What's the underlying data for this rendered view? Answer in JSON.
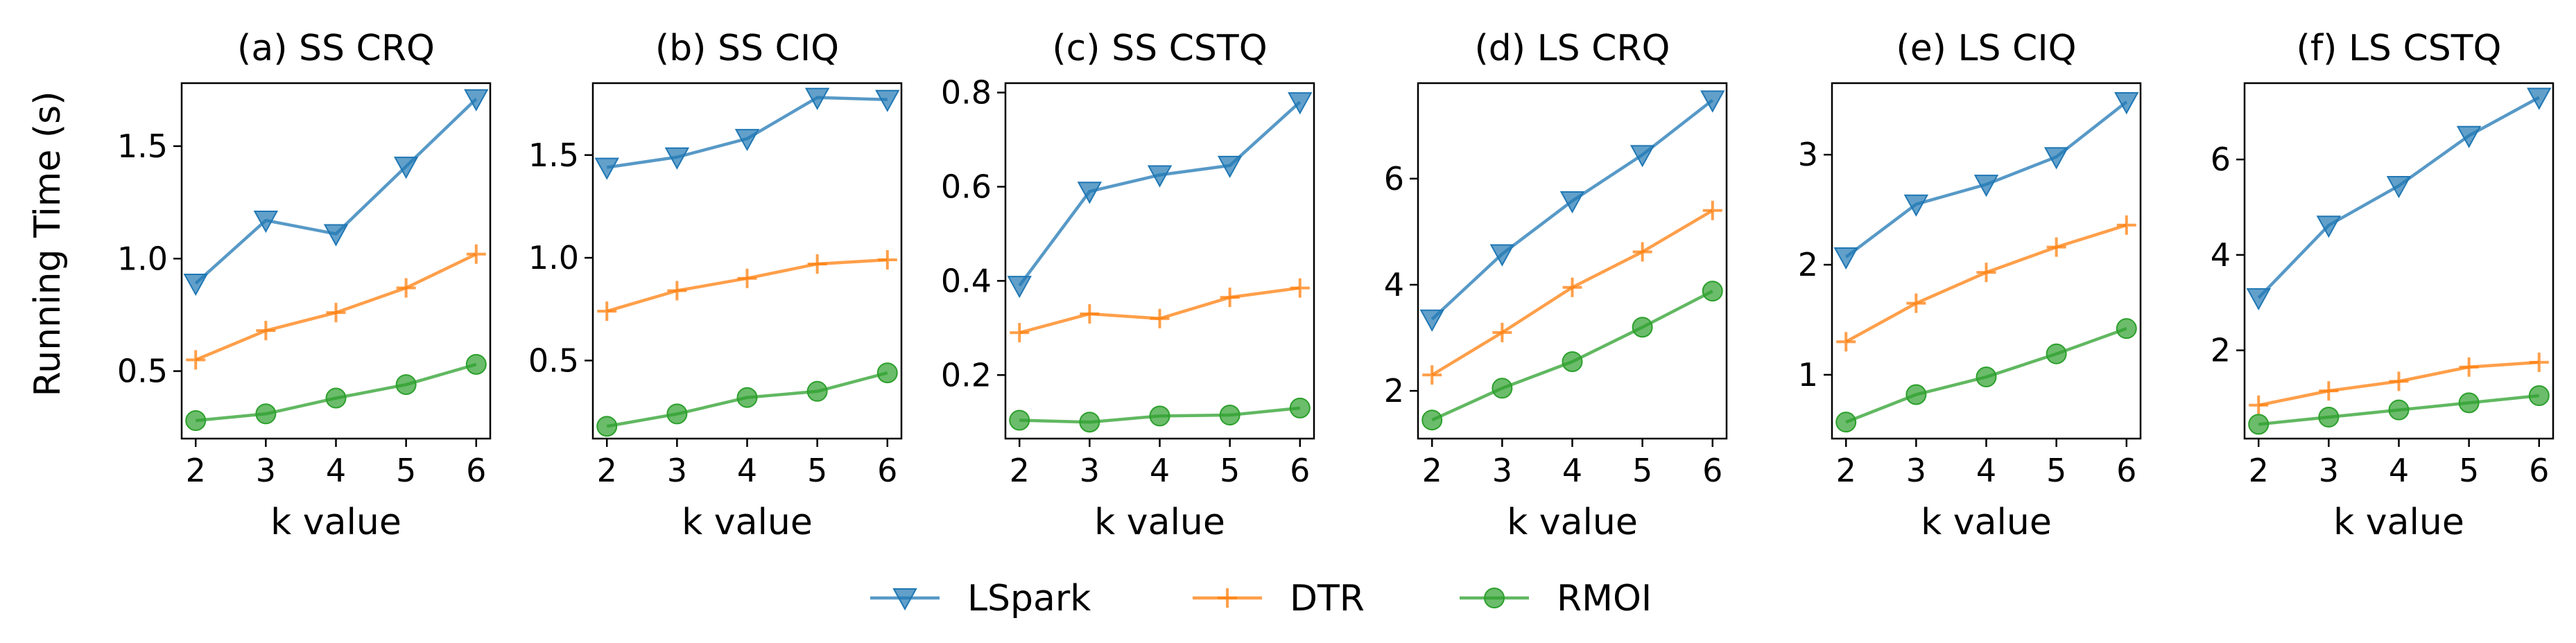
{
  "figure": {
    "ylabel": "Running Time (s)",
    "legend": {
      "placement": "bottom-center",
      "entries": [
        {
          "name": "LSpark",
          "color": "#1f77b4",
          "marker": "triangle-down"
        },
        {
          "name": "DTR",
          "color": "#ff7f0e",
          "marker": "plus"
        },
        {
          "name": "RMOI",
          "color": "#2ca02c",
          "marker": "circle"
        }
      ]
    }
  },
  "chart_data": [
    {
      "type": "line",
      "title": "(a) SS CRQ",
      "xlabel": "k value",
      "ylabel": "Running Time (s)",
      "x": [
        2,
        3,
        4,
        5,
        6
      ],
      "xticks": [
        "2",
        "3",
        "4",
        "5",
        "6"
      ],
      "ylim": [
        0.2,
        1.78
      ],
      "yticks": [
        0.5,
        1.0,
        1.5
      ],
      "ytick_labels": [
        "0.5",
        "1.0",
        "1.5"
      ],
      "series": [
        {
          "name": "LSpark",
          "values": [
            0.89,
            1.17,
            1.11,
            1.41,
            1.71
          ]
        },
        {
          "name": "DTR",
          "values": [
            0.55,
            0.68,
            0.76,
            0.87,
            1.02
          ]
        },
        {
          "name": "RMOI",
          "values": [
            0.28,
            0.31,
            0.38,
            0.44,
            0.53
          ]
        }
      ]
    },
    {
      "type": "line",
      "title": "(b) SS CIQ",
      "xlabel": "k value",
      "x": [
        2,
        3,
        4,
        5,
        6
      ],
      "xticks": [
        "2",
        "3",
        "4",
        "5",
        "6"
      ],
      "ylim": [
        0.12,
        1.85
      ],
      "yticks": [
        0.5,
        1.0,
        1.5
      ],
      "ytick_labels": [
        "0.5",
        "1.0",
        "1.5"
      ],
      "series": [
        {
          "name": "LSpark",
          "values": [
            1.44,
            1.49,
            1.58,
            1.78,
            1.77
          ]
        },
        {
          "name": "DTR",
          "values": [
            0.74,
            0.84,
            0.9,
            0.97,
            0.99
          ]
        },
        {
          "name": "RMOI",
          "values": [
            0.18,
            0.24,
            0.32,
            0.35,
            0.44
          ]
        }
      ]
    },
    {
      "type": "line",
      "title": "(c) SS CSTQ",
      "xlabel": "k value",
      "x": [
        2,
        3,
        4,
        5,
        6
      ],
      "xticks": [
        "2",
        "3",
        "4",
        "5",
        "6"
      ],
      "ylim": [
        0.065,
        0.82
      ],
      "yticks": [
        0.2,
        0.4,
        0.6,
        0.8
      ],
      "ytick_labels": [
        "0.2",
        "0.4",
        "0.6",
        "0.8"
      ],
      "series": [
        {
          "name": "LSpark",
          "values": [
            0.39,
            0.59,
            0.625,
            0.645,
            0.78
          ]
        },
        {
          "name": "DTR",
          "values": [
            0.29,
            0.33,
            0.32,
            0.365,
            0.385
          ]
        },
        {
          "name": "RMOI",
          "values": [
            0.104,
            0.1,
            0.113,
            0.115,
            0.13
          ]
        }
      ]
    },
    {
      "type": "line",
      "title": "(d) LS CRQ",
      "xlabel": "k value",
      "x": [
        2,
        3,
        4,
        5,
        6
      ],
      "xticks": [
        "2",
        "3",
        "4",
        "5",
        "6"
      ],
      "ylim": [
        1.1,
        7.8
      ],
      "yticks": [
        2,
        4,
        6
      ],
      "ytick_labels": [
        "2",
        "4",
        "6"
      ],
      "series": [
        {
          "name": "LSpark",
          "values": [
            3.35,
            4.58,
            5.58,
            6.45,
            7.48
          ]
        },
        {
          "name": "DTR",
          "values": [
            2.3,
            3.1,
            3.95,
            4.62,
            5.4
          ]
        },
        {
          "name": "RMOI",
          "values": [
            1.45,
            2.05,
            2.55,
            3.2,
            3.88
          ]
        }
      ]
    },
    {
      "type": "line",
      "title": "(e) LS CIQ",
      "xlabel": "k value",
      "x": [
        2,
        3,
        4,
        5,
        6
      ],
      "xticks": [
        "2",
        "3",
        "4",
        "5",
        "6"
      ],
      "ylim": [
        0.42,
        3.65
      ],
      "yticks": [
        1,
        2,
        3
      ],
      "ytick_labels": [
        "1",
        "2",
        "3"
      ],
      "series": [
        {
          "name": "LSpark",
          "values": [
            2.07,
            2.55,
            2.73,
            2.98,
            3.48
          ]
        },
        {
          "name": "DTR",
          "values": [
            1.3,
            1.65,
            1.93,
            2.16,
            2.36
          ]
        },
        {
          "name": "RMOI",
          "values": [
            0.57,
            0.82,
            0.98,
            1.19,
            1.42
          ]
        }
      ]
    },
    {
      "type": "line",
      "title": "(f) LS CSTQ",
      "xlabel": "k value",
      "x": [
        2,
        3,
        4,
        5,
        6
      ],
      "xticks": [
        "2",
        "3",
        "4",
        "5",
        "6"
      ],
      "ylim": [
        0.15,
        7.6
      ],
      "yticks": [
        2,
        4,
        6
      ],
      "ytick_labels": [
        "2",
        "4",
        "6"
      ],
      "series": [
        {
          "name": "LSpark",
          "values": [
            3.1,
            4.62,
            5.45,
            6.5,
            7.3
          ]
        },
        {
          "name": "DTR",
          "values": [
            0.85,
            1.15,
            1.35,
            1.65,
            1.75
          ]
        },
        {
          "name": "RMOI",
          "values": [
            0.45,
            0.6,
            0.75,
            0.9,
            1.05
          ]
        }
      ]
    }
  ]
}
